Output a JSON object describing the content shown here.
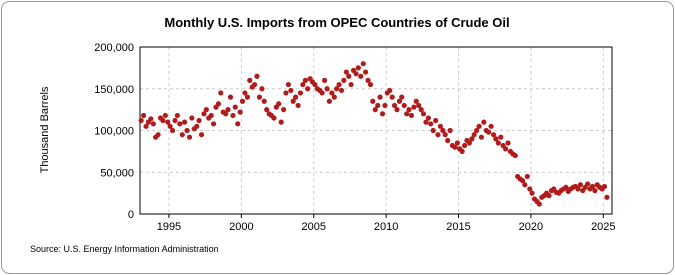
{
  "chart_data": {
    "type": "scatter",
    "title": "Monthly U.S. Imports from OPEC Countries of Crude Oil",
    "y_label": "Thousand Barrels",
    "source": "Source: U.S. Energy Information Administration",
    "color": "#b01c1c",
    "xlim": [
      1993,
      2025.6
    ],
    "xticks": [
      1995,
      2000,
      2005,
      2010,
      2015,
      2020,
      2025
    ],
    "ylim": [
      0,
      200000
    ],
    "yticks": [
      0,
      {
        "value": 50000,
        "label": "50,000"
      },
      {
        "value": 100000,
        "label": "100,000"
      },
      {
        "value": 150000,
        "label": "150,000"
      },
      {
        "value": 200000,
        "label": "200,000"
      }
    ],
    "grid": true,
    "x": [
      1993.08,
      1993.25,
      1993.42,
      1993.58,
      1993.75,
      1993.92,
      1994.08,
      1994.25,
      1994.42,
      1994.58,
      1994.75,
      1994.92,
      1995.08,
      1995.25,
      1995.42,
      1995.58,
      1995.75,
      1995.92,
      1996.08,
      1996.25,
      1996.42,
      1996.58,
      1996.75,
      1996.92,
      1997.08,
      1997.25,
      1997.42,
      1997.58,
      1997.75,
      1997.92,
      1998.08,
      1998.25,
      1998.42,
      1998.58,
      1998.75,
      1998.92,
      1999.08,
      1999.25,
      1999.42,
      1999.58,
      1999.75,
      1999.92,
      2000.08,
      2000.25,
      2000.42,
      2000.58,
      2000.75,
      2000.92,
      2001.08,
      2001.25,
      2001.42,
      2001.58,
      2001.75,
      2001.92,
      2002.08,
      2002.25,
      2002.42,
      2002.58,
      2002.75,
      2002.92,
      2003.08,
      2003.25,
      2003.42,
      2003.58,
      2003.75,
      2003.92,
      2004.08,
      2004.25,
      2004.42,
      2004.58,
      2004.75,
      2004.92,
      2005.08,
      2005.25,
      2005.42,
      2005.58,
      2005.75,
      2005.92,
      2006.08,
      2006.25,
      2006.42,
      2006.58,
      2006.75,
      2006.92,
      2007.08,
      2007.25,
      2007.42,
      2007.58,
      2007.75,
      2007.92,
      2008.08,
      2008.25,
      2008.42,
      2008.58,
      2008.75,
      2008.92,
      2009.08,
      2009.25,
      2009.42,
      2009.58,
      2009.75,
      2009.92,
      2010.08,
      2010.25,
      2010.42,
      2010.58,
      2010.75,
      2010.92,
      2011.08,
      2011.25,
      2011.42,
      2011.58,
      2011.75,
      2011.92,
      2012.08,
      2012.25,
      2012.42,
      2012.58,
      2012.75,
      2012.92,
      2013.08,
      2013.25,
      2013.42,
      2013.58,
      2013.75,
      2013.92,
      2014.08,
      2014.25,
      2014.42,
      2014.58,
      2014.75,
      2014.92,
      2015.08,
      2015.25,
      2015.42,
      2015.58,
      2015.75,
      2015.92,
      2016.08,
      2016.25,
      2016.42,
      2016.58,
      2016.75,
      2016.92,
      2017.08,
      2017.25,
      2017.42,
      2017.58,
      2017.75,
      2017.92,
      2018.08,
      2018.25,
      2018.42,
      2018.58,
      2018.75,
      2018.92,
      2019.08,
      2019.25,
      2019.42,
      2019.58,
      2019.75,
      2019.92,
      2020.08,
      2020.25,
      2020.42,
      2020.58,
      2020.75,
      2020.92,
      2021.08,
      2021.25,
      2021.42,
      2021.58,
      2021.75,
      2021.92,
      2022.08,
      2022.25,
      2022.42,
      2022.58,
      2022.75,
      2022.92,
      2023.08,
      2023.25,
      2023.42,
      2023.58,
      2023.75,
      2023.92,
      2024.08,
      2024.25,
      2024.42,
      2024.58,
      2024.75,
      2024.92,
      2025.08,
      2025.25
    ],
    "values": [
      112000,
      118000,
      105000,
      110000,
      114000,
      108000,
      92000,
      95000,
      115000,
      112000,
      118000,
      110000,
      105000,
      100000,
      112000,
      118000,
      108000,
      95000,
      110000,
      100000,
      92000,
      115000,
      102000,
      105000,
      112000,
      95000,
      120000,
      125000,
      115000,
      118000,
      108000,
      128000,
      132000,
      145000,
      122000,
      120000,
      125000,
      140000,
      118000,
      128000,
      108000,
      122000,
      135000,
      145000,
      140000,
      160000,
      152000,
      155000,
      165000,
      140000,
      150000,
      135000,
      125000,
      120000,
      118000,
      115000,
      128000,
      132000,
      110000,
      125000,
      145000,
      155000,
      148000,
      135000,
      140000,
      130000,
      145000,
      155000,
      160000,
      150000,
      162000,
      158000,
      155000,
      150000,
      148000,
      145000,
      160000,
      150000,
      135000,
      145000,
      140000,
      150000,
      155000,
      148000,
      160000,
      170000,
      165000,
      155000,
      172000,
      168000,
      175000,
      165000,
      180000,
      170000,
      160000,
      155000,
      135000,
      125000,
      130000,
      140000,
      120000,
      130000,
      145000,
      148000,
      140000,
      130000,
      125000,
      135000,
      140000,
      130000,
      120000,
      125000,
      118000,
      128000,
      135000,
      130000,
      125000,
      120000,
      110000,
      115000,
      108000,
      100000,
      112000,
      95000,
      105000,
      100000,
      95000,
      88000,
      100000,
      82000,
      80000,
      85000,
      78000,
      75000,
      82000,
      88000,
      85000,
      90000,
      95000,
      100000,
      105000,
      92000,
      110000,
      100000,
      98000,
      105000,
      95000,
      90000,
      85000,
      92000,
      82000,
      78000,
      85000,
      75000,
      72000,
      70000,
      45000,
      42000,
      40000,
      35000,
      45000,
      30000,
      25000,
      18000,
      15000,
      12000,
      20000,
      22000,
      25000,
      22000,
      28000,
      30000,
      26000,
      25000,
      28000,
      30000,
      32000,
      27000,
      30000,
      32000,
      33000,
      30000,
      35000,
      28000,
      32000,
      36000,
      30000,
      33000,
      28000,
      35000,
      32000,
      30000,
      33000,
      20000
    ]
  }
}
